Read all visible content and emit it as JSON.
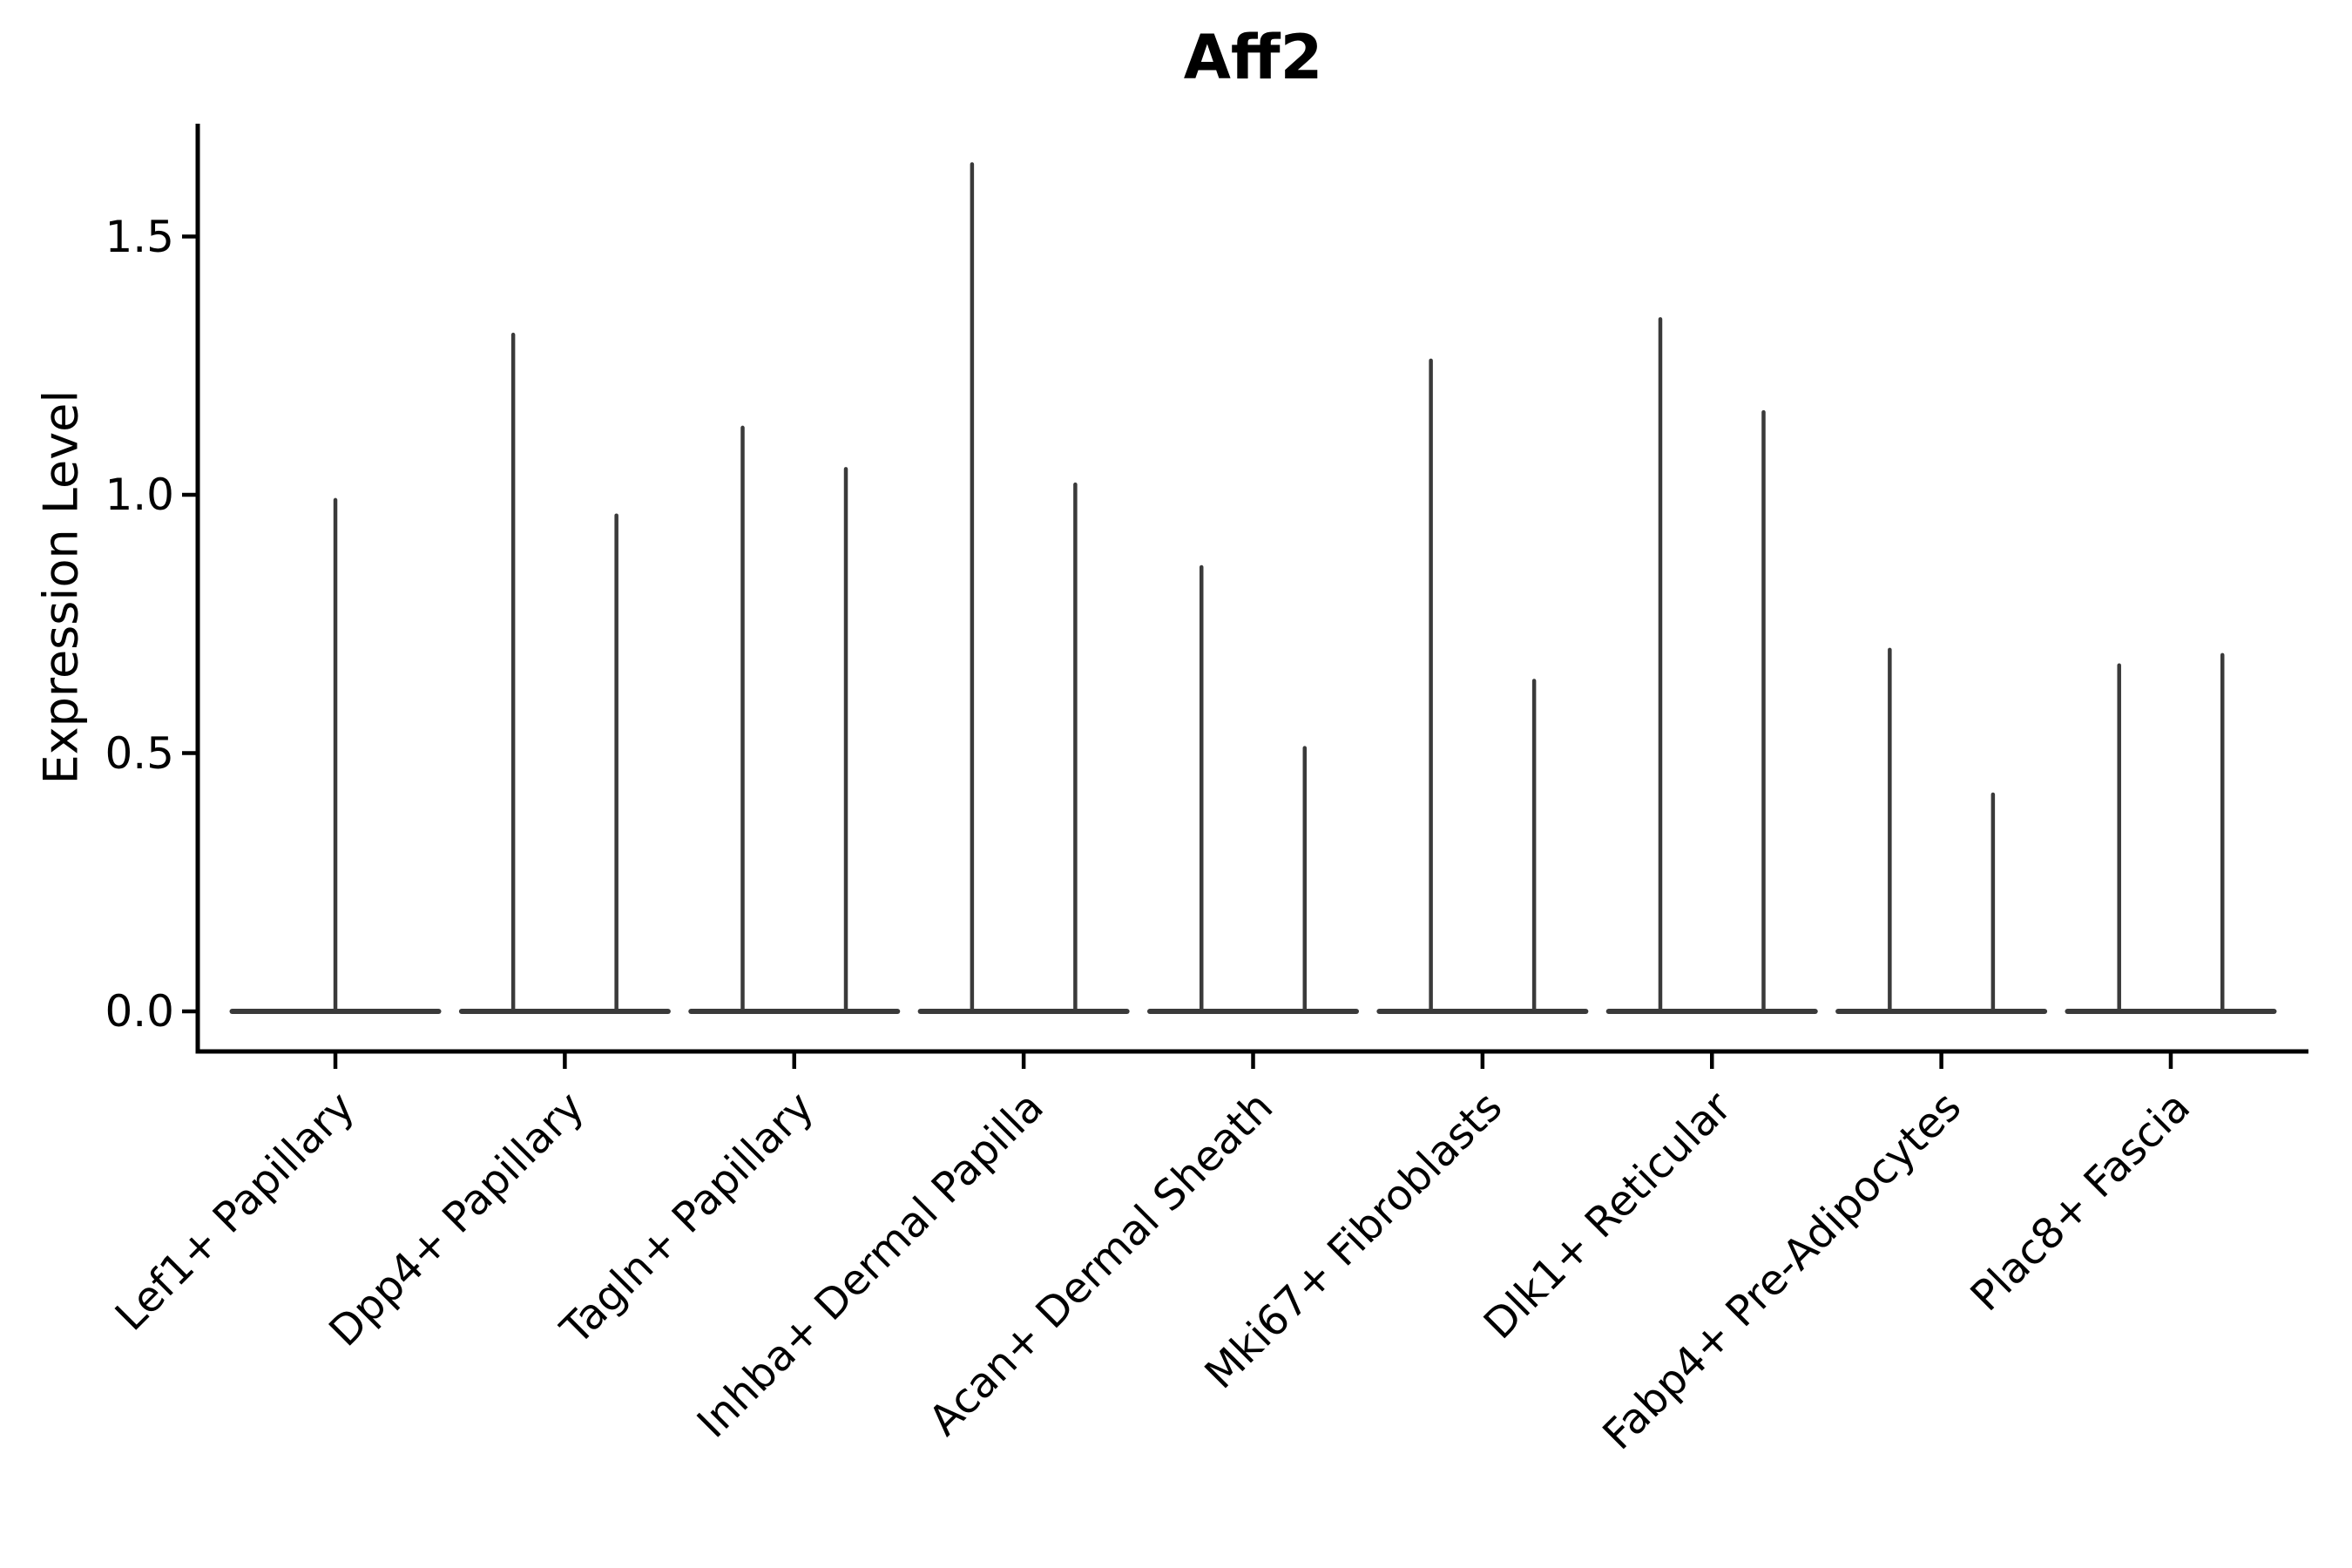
{
  "chart_data": {
    "type": "violin",
    "title": "Aff2",
    "ylabel": "Expression Level",
    "xlabel": "",
    "legend": "none",
    "grid": "off",
    "background": "#ffffff",
    "colors": {
      "violin_line": "#3a3a3a",
      "axis": "#000000",
      "text": "#000000"
    },
    "ylim": [
      -0.08,
      1.71
    ],
    "yticks": [
      0.0,
      0.5,
      1.0,
      1.5
    ],
    "ytick_labels": [
      "0.0",
      "0.5",
      "1.0",
      "1.5"
    ],
    "baseline_value": 0.0,
    "categories": [
      "Lef1+ Papillary",
      "Dpp4+ Papillary",
      "Tagln+ Papillary",
      "Inhba+ Dermal Papilla",
      "Acan+ Dermal Sheath",
      "Mki67+ Fibroblasts",
      "Dlk1+ Reticular",
      "Fabp4+ Pre-Adipocytes",
      "Plac8+ Fascia"
    ],
    "spikes": [
      [
        0.99
      ],
      [
        1.31,
        0.96
      ],
      [
        1.13,
        1.05
      ],
      [
        1.64,
        1.02
      ],
      [
        0.86,
        0.51
      ],
      [
        1.26,
        0.64
      ],
      [
        1.34,
        1.16
      ],
      [
        0.7,
        0.42
      ],
      [
        0.67,
        0.69
      ]
    ]
  }
}
